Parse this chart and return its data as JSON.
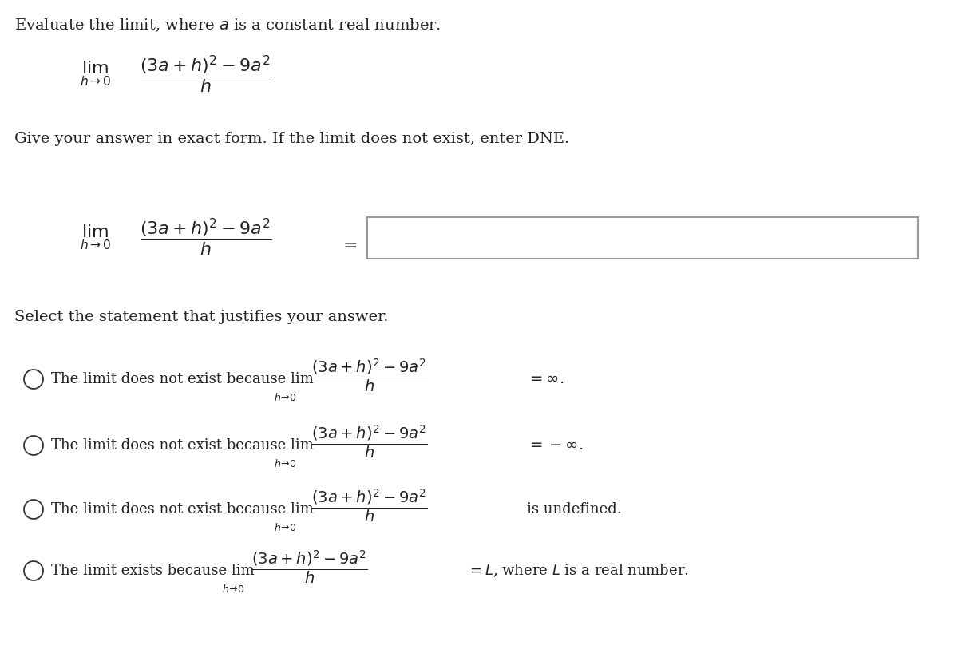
{
  "bg_color": "#ffffff",
  "text_color": "#222222",
  "figsize": [
    12.0,
    8.18
  ],
  "dpi": 100,
  "header": "Evaluate the limit, where $a$ is a constant real number.",
  "instruction": "Give your answer in exact form. If the limit does not exist, enter DNE.",
  "section_header": "Select the statement that justifies your answer.",
  "lim_sub": "$h\\!\\to\\!0$",
  "frac_expr": "$\\dfrac{(3a + h)^2 - 9a^2}{h}$",
  "option1_pre": "The limit does not exist because lim",
  "option1_post": "$\\,\\dfrac{(3a + h)^2 - 9a^2}{h} = \\infty$.",
  "option2_pre": "The limit does not exist because lim",
  "option2_post": "$\\,\\dfrac{(3a + h)^2 - 9a^2}{h} = -\\infty$.",
  "option3_pre": "The limit does not exist because lim",
  "option3_post": "$\\,\\dfrac{(3a + h)^2 - 9a^2}{h}$ is undefined.",
  "option4_pre": "The limit exists because lim",
  "option4_post": "$\\,\\dfrac{(3a + h)^2 - 9a^2}{h} = L$, where $L$ is a real number.",
  "radio_color": "#333333",
  "box_edge_color": "#999999"
}
